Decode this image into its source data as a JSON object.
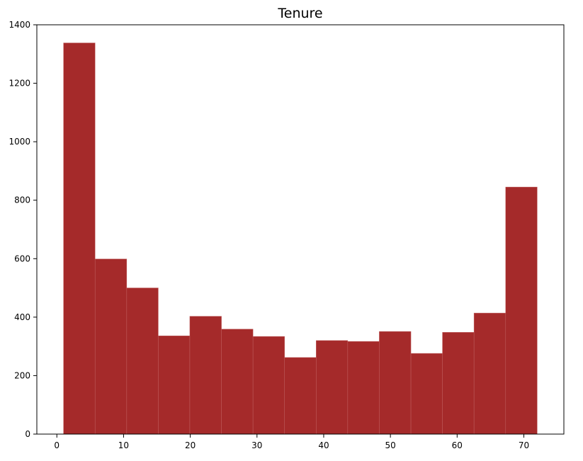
{
  "chart_data": {
    "type": "bar",
    "title": "Tenure",
    "xlabel": "",
    "ylabel": "",
    "bar_color": "#a52a2a",
    "bin_edges": [
      1.0,
      5.73,
      10.47,
      15.2,
      19.93,
      24.67,
      29.4,
      34.13,
      38.87,
      43.6,
      48.33,
      53.07,
      57.8,
      62.53,
      67.27,
      72.0
    ],
    "values": [
      1338,
      599,
      500,
      336,
      403,
      359,
      334,
      262,
      320,
      317,
      351,
      276,
      348,
      414,
      845
    ],
    "xlim": [
      -3.0,
      76.0
    ],
    "ylim": [
      0,
      1400
    ],
    "xticks": [
      0,
      10,
      20,
      30,
      40,
      50,
      60,
      70
    ],
    "yticks": [
      0,
      200,
      400,
      600,
      800,
      1000,
      1200,
      1400
    ],
    "grid": false,
    "legend": "none"
  }
}
